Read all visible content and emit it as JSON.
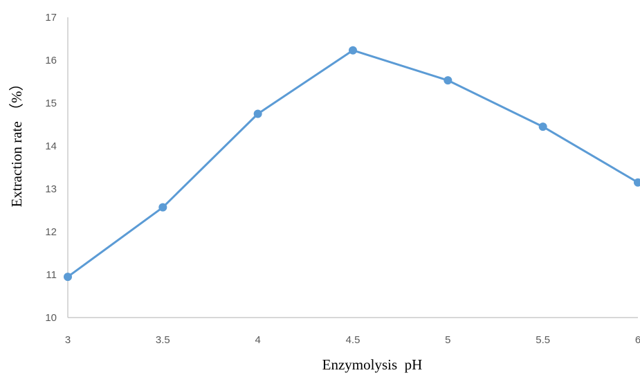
{
  "chart_data": {
    "type": "line",
    "x": [
      "3",
      "3.5",
      "4",
      "4.5",
      "5",
      "5.5",
      "6"
    ],
    "series": [
      {
        "values": [
          10.95,
          12.57,
          14.75,
          16.23,
          15.53,
          14.45,
          13.15
        ]
      }
    ],
    "xlabel": "Enzymolysis  pH",
    "ylabel": "Extraction rate （%）",
    "ylim": [
      10,
      17
    ],
    "yticks": [
      "10",
      "11",
      "12",
      "13",
      "14",
      "15",
      "16",
      "17"
    ],
    "grid": false,
    "colors": {
      "series": "#5b9bd5",
      "axis": "#bfbfbf"
    }
  }
}
